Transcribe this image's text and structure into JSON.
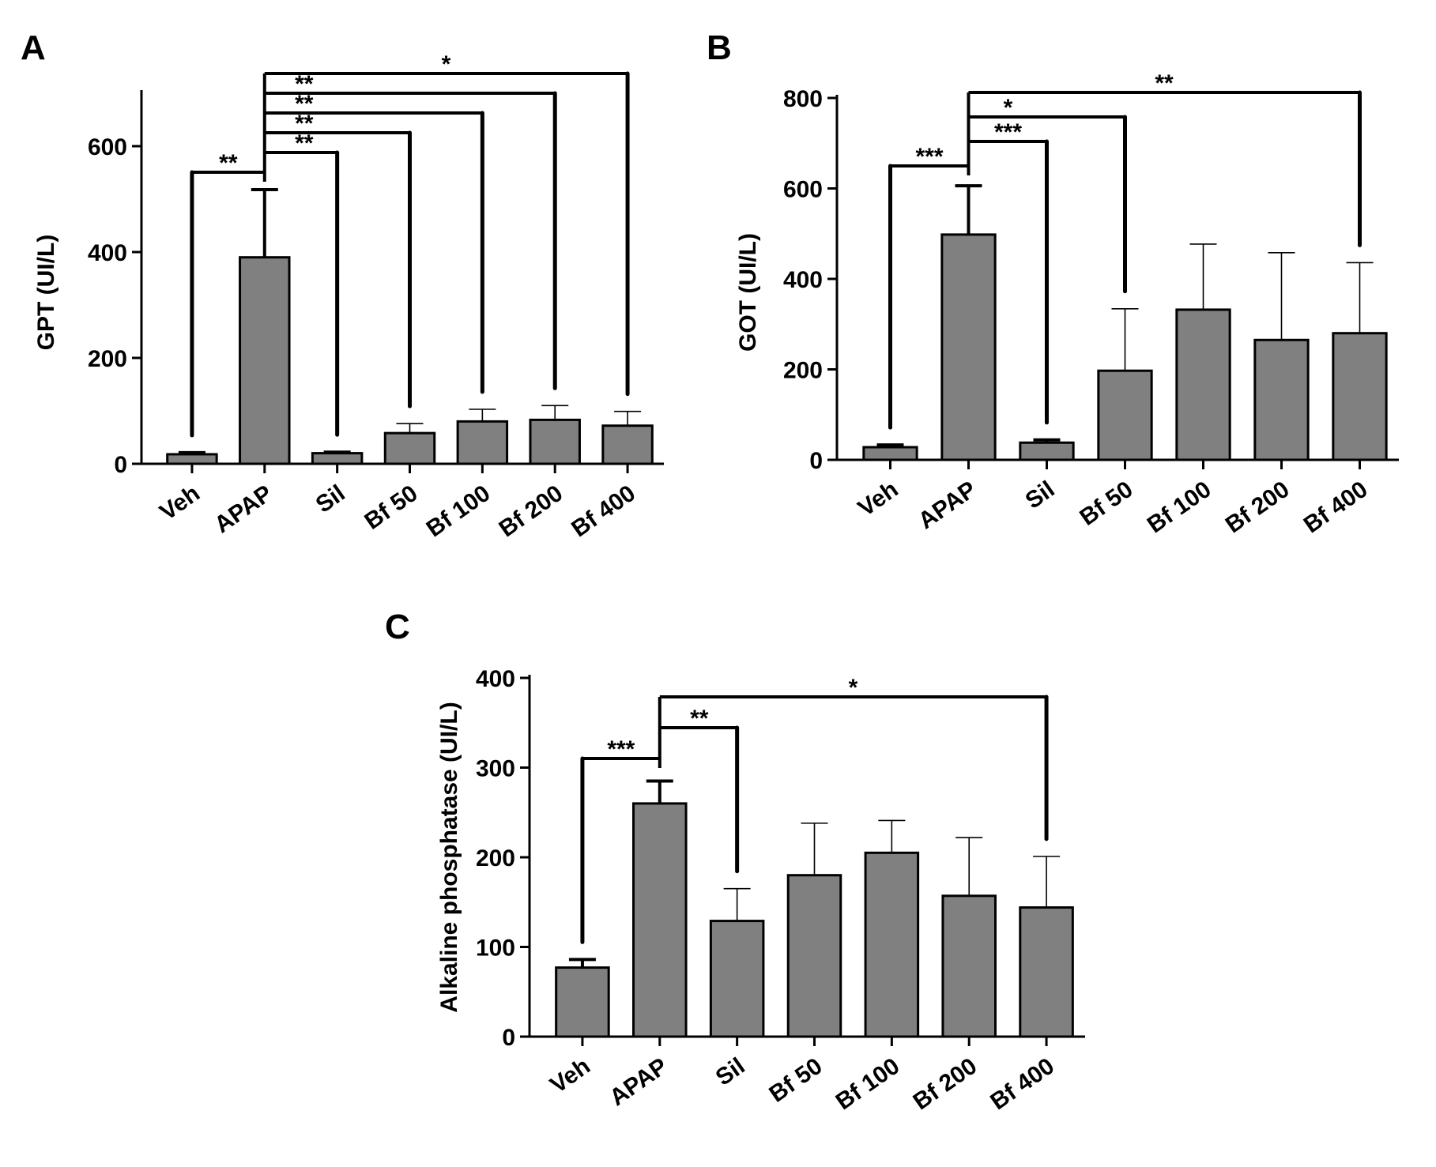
{
  "chart_data": [
    {
      "type": "bar",
      "panel_label": "A",
      "ylabel": "GPT (UI/L)",
      "ylim": [
        0,
        700
      ],
      "yticks": [
        0,
        200,
        400,
        600
      ],
      "categories": [
        "Veh",
        "APAP",
        "Sil",
        "Bf 50",
        "Bf 100",
        "Bf 200",
        "Bf 400"
      ],
      "values": [
        18,
        390,
        20,
        58,
        80,
        83,
        72
      ],
      "errors": [
        3,
        128,
        2,
        18,
        23,
        27,
        27
      ],
      "bar_color": "#808080",
      "comparisons": [
        {
          "from": 1,
          "to": 0,
          "label": "**"
        },
        {
          "from": 1,
          "to": 2,
          "label": "**"
        },
        {
          "from": 1,
          "to": 3,
          "label": "**"
        },
        {
          "from": 1,
          "to": 4,
          "label": "**"
        },
        {
          "from": 1,
          "to": 5,
          "label": "**"
        },
        {
          "from": 1,
          "to": 6,
          "label": "*"
        }
      ]
    },
    {
      "type": "bar",
      "panel_label": "B",
      "ylabel": "GOT (UI/L)",
      "ylim": [
        0,
        800
      ],
      "yticks": [
        0,
        200,
        400,
        600,
        800
      ],
      "categories": [
        "Veh",
        "APAP",
        "Sil",
        "Bf 50",
        "Bf 100",
        "Bf 200",
        "Bf 400"
      ],
      "values": [
        28,
        498,
        38,
        197,
        332,
        265,
        280
      ],
      "errors": [
        5,
        108,
        6,
        137,
        145,
        193,
        156
      ],
      "bar_color": "#808080",
      "comparisons": [
        {
          "from": 1,
          "to": 0,
          "label": "***"
        },
        {
          "from": 1,
          "to": 2,
          "label": "***"
        },
        {
          "from": 1,
          "to": 3,
          "label": "*"
        },
        {
          "from": 1,
          "to": 6,
          "label": "**"
        }
      ]
    },
    {
      "type": "bar",
      "panel_label": "C",
      "ylabel": "Alkaline phosphatase (UI/L)",
      "ylim": [
        0,
        400
      ],
      "yticks": [
        0,
        100,
        200,
        300,
        400
      ],
      "categories": [
        "Veh",
        "APAP",
        "Sil",
        "Bf 50",
        "Bf 100",
        "Bf 200",
        "Bf 400"
      ],
      "values": [
        77,
        260,
        129,
        180,
        205,
        157,
        144
      ],
      "errors": [
        9,
        25,
        36,
        58,
        36,
        65,
        57
      ],
      "bar_color": "#808080",
      "comparisons": [
        {
          "from": 1,
          "to": 0,
          "label": "***"
        },
        {
          "from": 1,
          "to": 2,
          "label": "**"
        },
        {
          "from": 1,
          "to": 6,
          "label": "*"
        }
      ]
    }
  ]
}
